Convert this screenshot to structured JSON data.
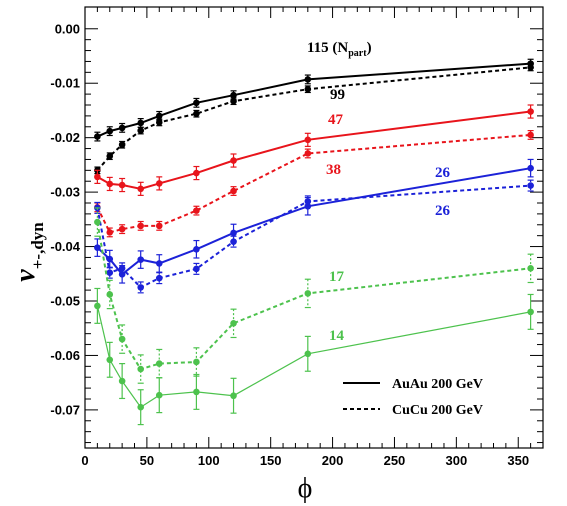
{
  "chart_data": {
    "type": "line",
    "xlabel": "ϕ",
    "ylabel": "ν+-,dyn",
    "ylabel_main": "ν",
    "ylabel_sub": "+-,dyn",
    "xlim": [
      0,
      370
    ],
    "ylim": [
      -0.077,
      0.004
    ],
    "x_ticks": [
      0,
      50,
      100,
      150,
      200,
      250,
      300,
      350
    ],
    "x_tick_labels": [
      "0",
      "50",
      "100",
      "150",
      "200",
      "250",
      "300",
      "350"
    ],
    "y_ticks": [
      0,
      -0.01,
      -0.02,
      -0.03,
      -0.04,
      -0.05,
      -0.06,
      -0.07
    ],
    "y_tick_labels": [
      "0.00",
      "-0.01",
      "-0.02",
      "-0.03",
      "-0.04",
      "-0.05",
      "-0.06",
      "-0.07"
    ],
    "grid": false,
    "legend_position": "bottom-right",
    "legend": [
      {
        "label": "AuAu 200 GeV",
        "style": "solid"
      },
      {
        "label": "CuCu 200 GeV",
        "style": "dashed"
      }
    ],
    "x": [
      10,
      20,
      30,
      45,
      60,
      90,
      120,
      180,
      360
    ],
    "series": [
      {
        "name": "115 (N_part)",
        "label": "115 (N",
        "label_sub": "part",
        "label_tail": ")",
        "system": "AuAu 200 GeV",
        "color": "#000000",
        "dash": "solid",
        "values": [
          -0.0198,
          -0.0188,
          -0.0182,
          -0.0173,
          -0.016,
          -0.0136,
          -0.0122,
          -0.0093,
          -0.0064
        ],
        "errors": [
          0.0008,
          0.0008,
          0.0008,
          0.0008,
          0.0008,
          0.0008,
          0.0008,
          0.0008,
          0.0008
        ]
      },
      {
        "name": "99",
        "label": "99",
        "system": "CuCu 200 GeV",
        "color": "#000000",
        "dash": "dashed",
        "values": [
          -0.026,
          -0.0234,
          -0.0213,
          -0.0187,
          -0.0172,
          -0.0156,
          -0.0133,
          -0.0111,
          -0.0071
        ],
        "errors": [
          0.0006,
          0.0006,
          0.0006,
          0.0006,
          0.0006,
          0.0006,
          0.0006,
          0.0006,
          0.0006
        ]
      },
      {
        "name": "47",
        "label": "47",
        "system": "AuAu 200 GeV",
        "color": "#e8141b",
        "dash": "solid",
        "values": [
          -0.0272,
          -0.0285,
          -0.0287,
          -0.0294,
          -0.0284,
          -0.0265,
          -0.0242,
          -0.0204,
          -0.0152
        ],
        "errors": [
          0.0012,
          0.0012,
          0.0012,
          0.0012,
          0.0012,
          0.0012,
          0.0012,
          0.0012,
          0.0012
        ]
      },
      {
        "name": "38",
        "label": "38",
        "system": "CuCu 200 GeV",
        "color": "#e8141b",
        "dash": "dashed",
        "values": [
          -0.0328,
          -0.0374,
          -0.0368,
          -0.0362,
          -0.0362,
          -0.0334,
          -0.0298,
          -0.0229,
          -0.0195
        ],
        "errors": [
          0.0008,
          0.0008,
          0.0008,
          0.0008,
          0.0008,
          0.0008,
          0.0008,
          0.0008,
          0.0008
        ]
      },
      {
        "name": "26",
        "label": "26",
        "system": "AuAu 200 GeV",
        "color": "#1c22d8",
        "dash": "solid",
        "values": [
          -0.0402,
          -0.0423,
          -0.0451,
          -0.0424,
          -0.0431,
          -0.0405,
          -0.0375,
          -0.0326,
          -0.0256
        ],
        "errors": [
          0.0016,
          0.0016,
          0.0016,
          0.0016,
          0.0016,
          0.0016,
          0.0016,
          0.0016,
          0.0016
        ]
      },
      {
        "name": "26",
        "label": "26",
        "system": "CuCu 200 GeV",
        "color": "#1c22d8",
        "dash": "dashed",
        "values": [
          -0.0329,
          -0.0448,
          -0.044,
          -0.0475,
          -0.0458,
          -0.0441,
          -0.0391,
          -0.0317,
          -0.0288
        ],
        "errors": [
          0.001,
          0.001,
          0.001,
          0.001,
          0.001,
          0.001,
          0.001,
          0.001,
          0.001
        ]
      },
      {
        "name": "17",
        "label": "17",
        "system": "CuCu 200 GeV",
        "color": "#4dc24d",
        "dash": "dashed",
        "values": [
          -0.0355,
          -0.0488,
          -0.057,
          -0.0625,
          -0.0615,
          -0.0612,
          -0.0541,
          -0.0486,
          -0.044
        ],
        "errors": [
          0.0026,
          0.0026,
          0.0026,
          0.0026,
          0.0026,
          0.0026,
          0.0026,
          0.0026,
          0.0026
        ]
      },
      {
        "name": "14",
        "label": "14",
        "system": "AuAu 200 GeV",
        "color": "#4dc24d",
        "dash": "solid",
        "values": [
          -0.0509,
          -0.0608,
          -0.0647,
          -0.0695,
          -0.0673,
          -0.0667,
          -0.0674,
          -0.0597,
          -0.052
        ],
        "errors": [
          0.0032,
          0.0032,
          0.0032,
          0.0032,
          0.0032,
          0.0032,
          0.0032,
          0.0032,
          0.0032
        ]
      }
    ]
  }
}
